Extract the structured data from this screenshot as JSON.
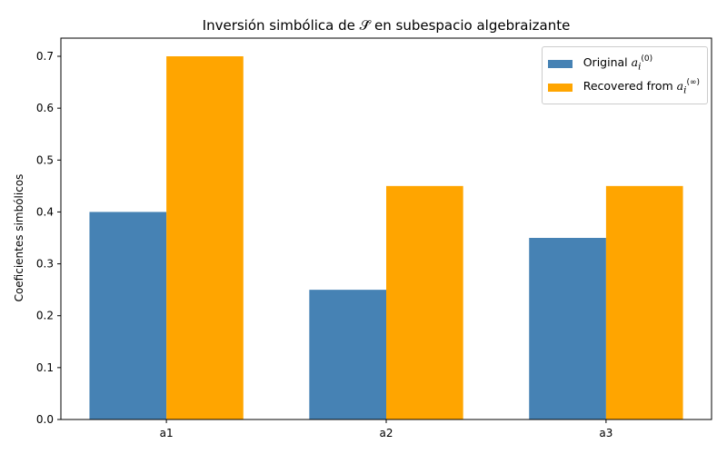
{
  "chart_data": {
    "type": "bar",
    "title": "Inversión simbólica de 𝒮̂ en subespacio algebraizante",
    "xlabel": "",
    "ylabel": "Coeficientes simbólicos",
    "categories": [
      "a1",
      "a2",
      "a3"
    ],
    "series": [
      {
        "name": "Original a_i^(0)",
        "label_prefix": "Original ",
        "label_var": "a",
        "label_sub": "i",
        "label_sup": "(0)",
        "color": "#4682b4",
        "values": [
          0.4,
          0.25,
          0.35
        ]
      },
      {
        "name": "Recovered from a_i^(∞)",
        "label_prefix": "Recovered from ",
        "label_var": "a",
        "label_sub": "i",
        "label_sup": "(∞)",
        "color": "#ffa500",
        "values": [
          0.7,
          0.45,
          0.45
        ]
      }
    ],
    "ylim": [
      0,
      0.735
    ],
    "yticks": [
      "0.0",
      "0.1",
      "0.2",
      "0.3",
      "0.4",
      "0.5",
      "0.6",
      "0.7"
    ],
    "grid": false,
    "legend_position": "top-right"
  }
}
